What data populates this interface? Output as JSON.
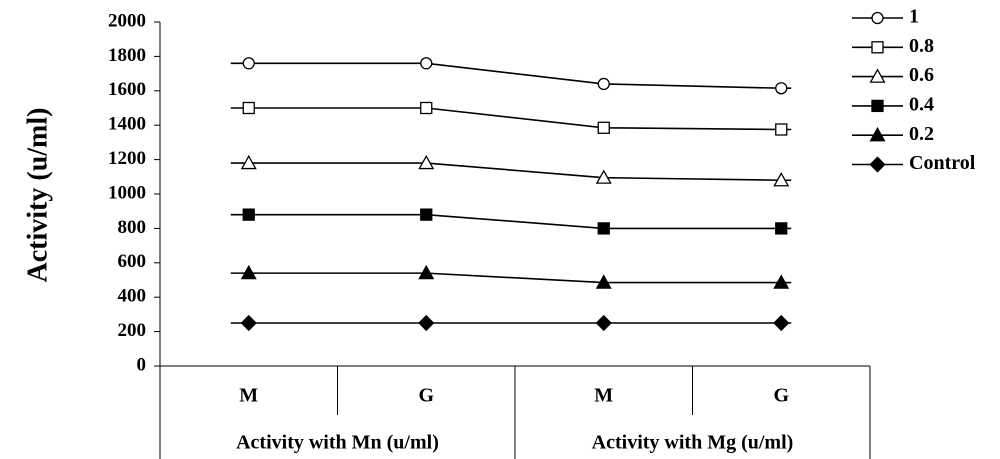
{
  "chart_data": {
    "type": "line",
    "ylabel": "Activity (u/ml)",
    "ylim": [
      0,
      2000
    ],
    "yticks": [
      0,
      200,
      400,
      600,
      800,
      1000,
      1200,
      1400,
      1600,
      1800,
      2000
    ],
    "categories": [
      "M",
      "G",
      "M",
      "G"
    ],
    "groups": [
      {
        "label": "Activity with Mn (u/ml)",
        "categories": [
          "M",
          "G"
        ]
      },
      {
        "label": "Activity with Mg (u/ml)",
        "categories": [
          "M",
          "G"
        ]
      }
    ],
    "grid": false,
    "legend_position": "top-right",
    "series": [
      {
        "name": "1",
        "marker": "circle-open",
        "values": [
          1760,
          1760,
          1640,
          1615
        ]
      },
      {
        "name": "0.8",
        "marker": "square-open",
        "values": [
          1500,
          1500,
          1385,
          1375
        ]
      },
      {
        "name": "0.6",
        "marker": "triangle-open",
        "values": [
          1180,
          1180,
          1095,
          1080
        ]
      },
      {
        "name": "0.4",
        "marker": "square-filled",
        "values": [
          880,
          880,
          800,
          800
        ]
      },
      {
        "name": "0.2",
        "marker": "triangle-filled",
        "values": [
          540,
          540,
          485,
          485
        ]
      },
      {
        "name": "Control",
        "marker": "diamond-filled",
        "values": [
          250,
          250,
          250,
          250
        ]
      }
    ],
    "colors": {
      "line": "#000000",
      "background": "#ffffff"
    }
  }
}
